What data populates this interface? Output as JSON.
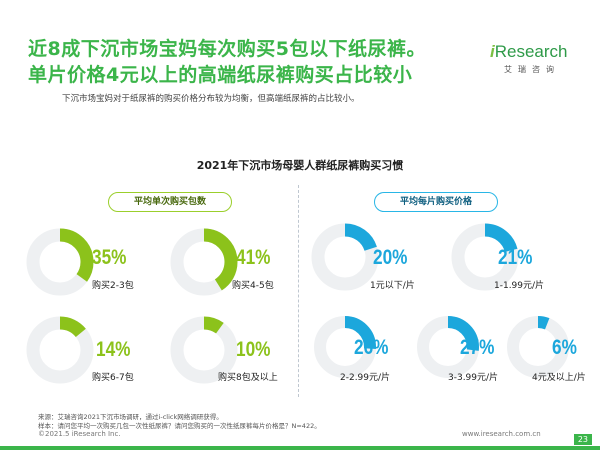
{
  "header": {
    "title_line1": "近8成下沉市场宝妈每次购买5包以下纸尿裤。",
    "title_line2": "单片价格4元以上的高端纸尿裤购买占比较小",
    "subtitle": "下沉市场宝妈对于纸尿裤的购买价格分布较为均衡，但高端纸尿裤的占比较小。",
    "logo_brand": "Research",
    "logo_i": "i",
    "logo_cn": "艾瑞咨询"
  },
  "chart_data": {
    "type": "pie",
    "title": "2021年下沉市场母婴人群纸尿裤购买习惯",
    "groups": [
      {
        "name": "平均单次购买包数",
        "color": "#8cc21b",
        "categories": [
          "购买2-3包",
          "购买4-5包",
          "购买6-7包",
          "购买8包及以上"
        ],
        "values": [
          35,
          41,
          14,
          10
        ],
        "labels": [
          "35%",
          "41%",
          "14%",
          "10%"
        ]
      },
      {
        "name": "平均每片购买价格",
        "color": "#1ca7dc",
        "categories": [
          "1元以下/片",
          "1-1.99元/片",
          "2-2.99元/片",
          "3-3.99元/片",
          "4元及以上/片"
        ],
        "values": [
          20,
          21,
          26,
          27,
          6
        ],
        "labels": [
          "20%",
          "21%",
          "26%",
          "27%",
          "6%"
        ]
      }
    ]
  },
  "colors": {
    "ring_bg": "#eef0f2",
    "green": "#8cc21b",
    "blue": "#1ca7dc",
    "brand": "#3bb54a"
  },
  "footer": {
    "source": "来源：艾瑞咨询2021下沉市场调研，通过i-click网络调研获得。",
    "sample": "样本：请问您平均一次购买几包一次性纸尿裤？请问您购买的一次性纸尿裤每片价格是？N=422。",
    "copyright": "©2021.5 iResearch Inc.",
    "website": "www.iresearch.com.cn",
    "page": "23"
  }
}
